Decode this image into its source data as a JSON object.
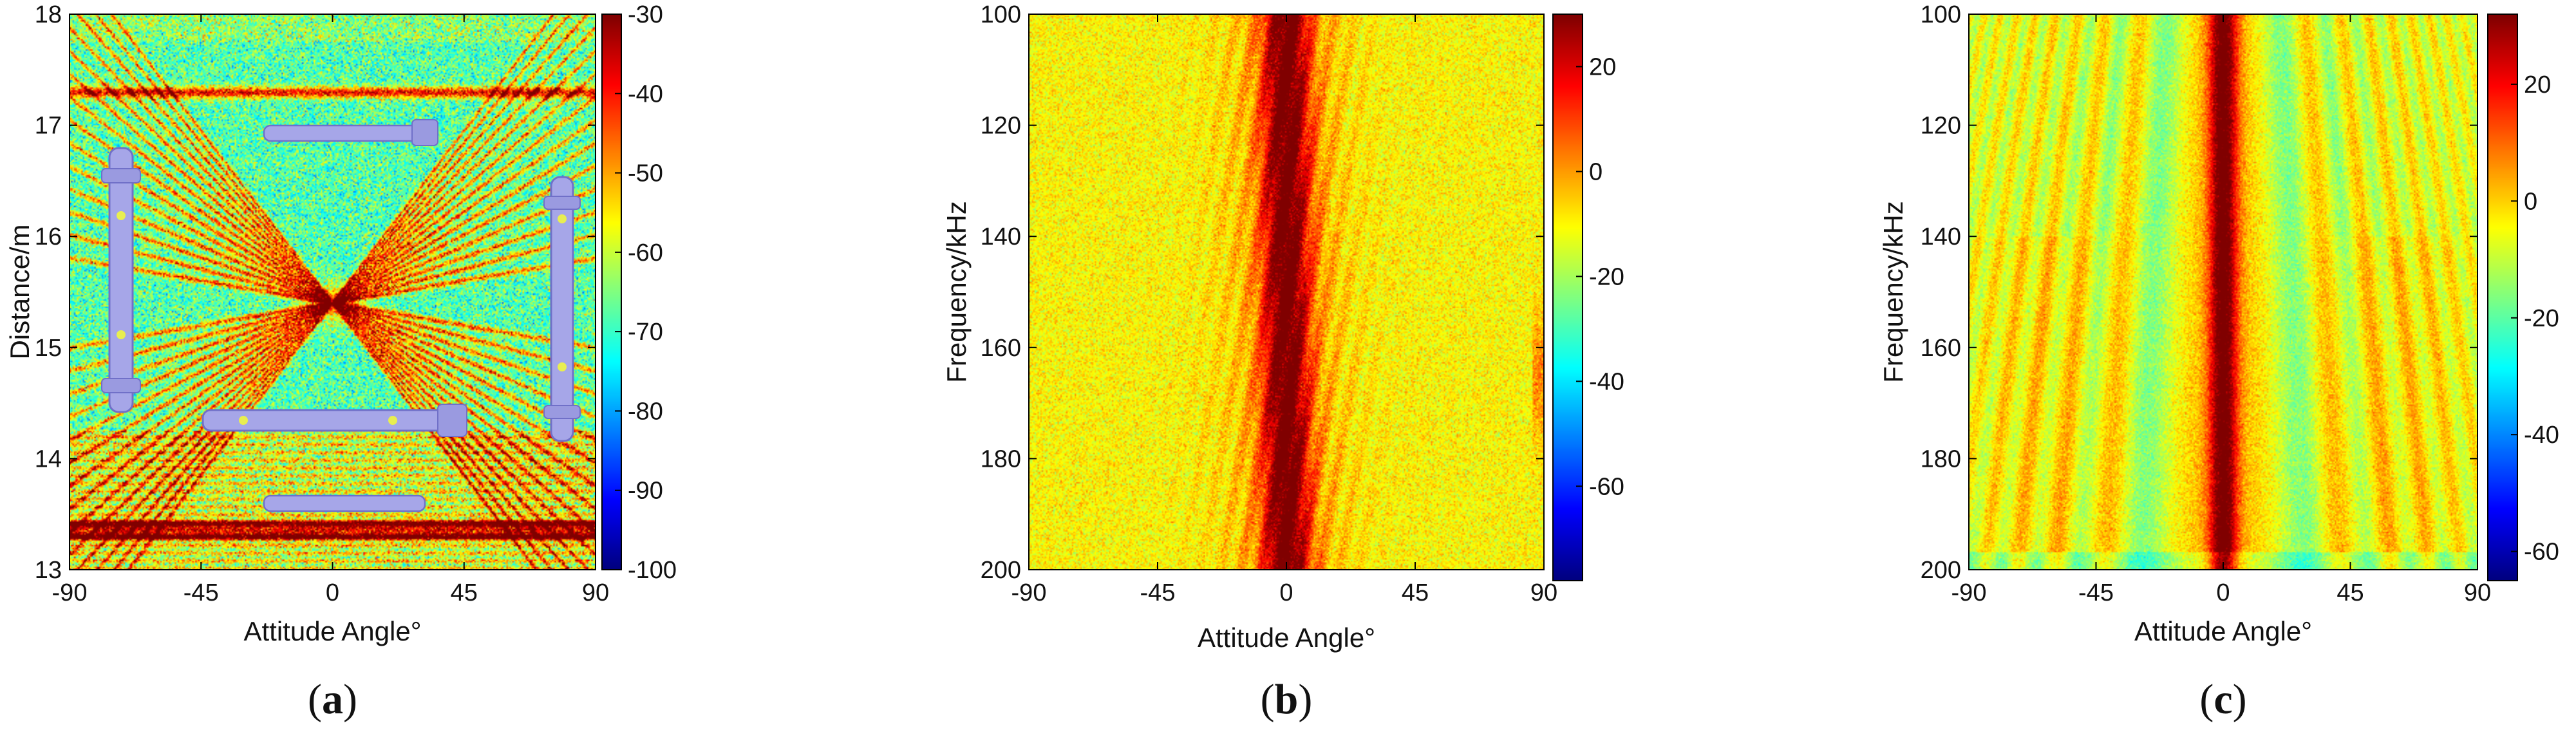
{
  "colormap": "jet",
  "colors": {
    "jet_low": "#00008f",
    "jet_mid": "#80ff80",
    "jet_high": "#800000",
    "model_fill": "#a6a6e8",
    "model_stroke": "#7070c8",
    "model_dots": "#e8ee50"
  },
  "chart_data": [
    {
      "id": "a",
      "type": "heatmap",
      "panel_label": {
        "open": "(",
        "letter": "a",
        "close": ")"
      },
      "xlabel": "Attitude Angle°",
      "ylabel": "Distance/m",
      "xlim": [
        -90,
        90
      ],
      "ylim": [
        13,
        18
      ],
      "x_ticks": [
        "-90",
        "-45",
        "0",
        "45",
        "90"
      ],
      "y_ticks": [
        "13",
        "14",
        "15",
        "16",
        "17",
        "18"
      ],
      "colorbar": {
        "range": [
          -100,
          -30
        ],
        "ticks": [
          "-30",
          "-40",
          "-50",
          "-60",
          "-70",
          "-80",
          "-90",
          "-100"
        ]
      },
      "background_level": -68,
      "features": {
        "horizontal_bands_m": [
          17.3,
          13.4,
          13.3
        ],
        "crossing_center": {
          "angle": 0,
          "distance": 15.4
        },
        "inset_models": [
          "vertical-left",
          "vertical-right",
          "horizontal-top",
          "horizontal-middle",
          "horizontal-bottom"
        ]
      }
    },
    {
      "id": "b",
      "type": "heatmap",
      "panel_label": {
        "open": "(",
        "letter": "b",
        "close": ")"
      },
      "xlabel": "Attitude Angle°",
      "ylabel": "Frequency/kHz",
      "xlim": [
        -90,
        90
      ],
      "ylim": [
        100,
        200
      ],
      "x_ticks": [
        "-90",
        "-45",
        "0",
        "45",
        "90"
      ],
      "y_ticks": [
        "100",
        "120",
        "140",
        "160",
        "180",
        "200"
      ],
      "colorbar": {
        "range": [
          -78,
          30
        ],
        "ticks": [
          "20",
          "0",
          "-20",
          "-40",
          "-60"
        ]
      },
      "background_level": -10,
      "features": {
        "peak_angle": 0,
        "peak_width_deg": 8,
        "peak_level": 28
      }
    },
    {
      "id": "c",
      "type": "heatmap",
      "panel_label": {
        "open": "(",
        "letter": "c",
        "close": ")"
      },
      "xlabel": "Attitude Angle°",
      "ylabel": "Frequency/kHz",
      "xlim": [
        -90,
        90
      ],
      "ylim": [
        100,
        200
      ],
      "x_ticks": [
        "-90",
        "-45",
        "0",
        "45",
        "90"
      ],
      "y_ticks": [
        "100",
        "120",
        "140",
        "160",
        "180",
        "200"
      ],
      "colorbar": {
        "range": [
          -65,
          32
        ],
        "ticks": [
          "20",
          "0",
          "-20",
          "-40",
          "-60"
        ]
      },
      "background_level": -8,
      "features": {
        "peak_angle": 0,
        "peak_width_deg": 5,
        "peak_level": 28,
        "fringe_pattern": true
      }
    }
  ]
}
